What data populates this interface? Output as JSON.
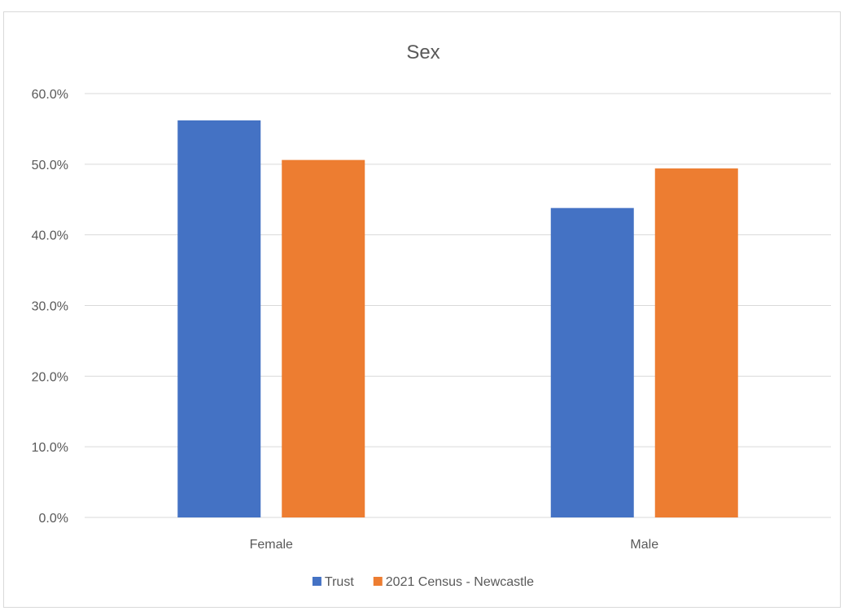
{
  "chart_data": {
    "type": "bar",
    "title": "Sex",
    "categories": [
      "Female",
      "Male"
    ],
    "series": [
      {
        "name": "Trust",
        "values": [
          56.2,
          43.8
        ],
        "color": "#4472C4"
      },
      {
        "name": "2021 Census - Newcastle",
        "values": [
          50.6,
          49.4
        ],
        "color": "#ED7D31"
      }
    ],
    "yticks": [
      "0.0%",
      "10.0%",
      "20.0%",
      "30.0%",
      "40.0%",
      "50.0%",
      "60.0%"
    ],
    "ylim": [
      0,
      60
    ],
    "xlabel": "",
    "ylabel": "",
    "grid": true,
    "legend_position": "bottom"
  }
}
